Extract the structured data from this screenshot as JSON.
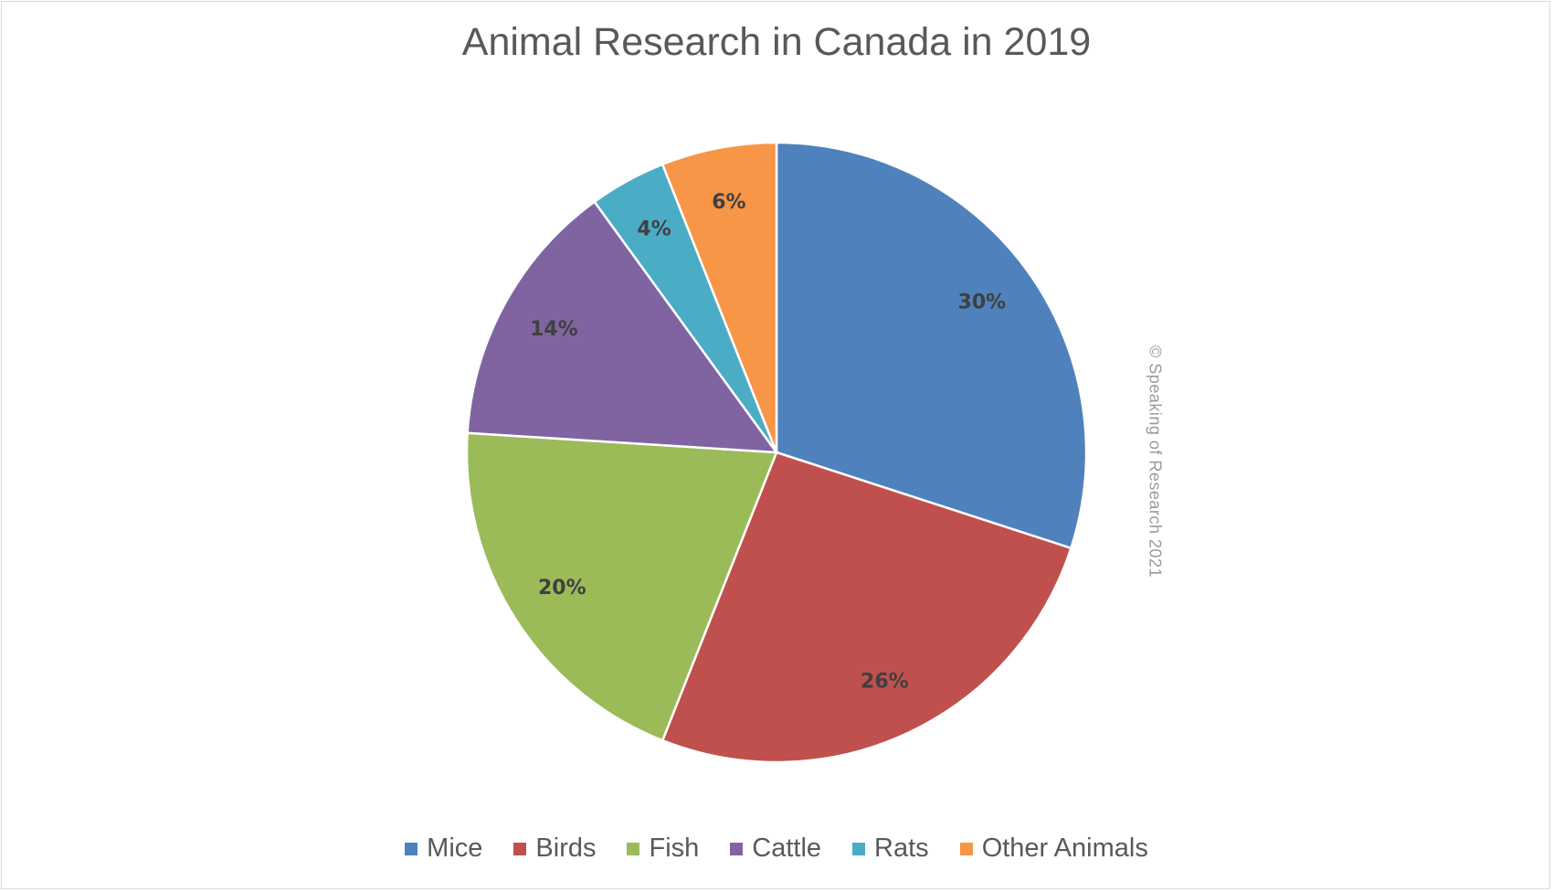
{
  "chart_data": {
    "type": "pie",
    "title": "Animal Research in Canada in 2019",
    "slices": [
      {
        "label": "Mice",
        "value": 30,
        "data_label": "30%",
        "color": "#4F81BD"
      },
      {
        "label": "Birds",
        "value": 26,
        "data_label": "26%",
        "color": "#C0504D"
      },
      {
        "label": "Fish",
        "value": 20,
        "data_label": "20%",
        "color": "#9BBB59"
      },
      {
        "label": "Cattle",
        "value": 14,
        "data_label": "14%",
        "color": "#8064A2"
      },
      {
        "label": "Rats",
        "value": 4,
        "data_label": "4%",
        "color": "#4BACC6"
      },
      {
        "label": "Other Animals",
        "value": 6,
        "data_label": "6%",
        "color": "#F79646"
      }
    ],
    "legend_position": "bottom"
  },
  "watermark": "© Speaking of Research 2021"
}
